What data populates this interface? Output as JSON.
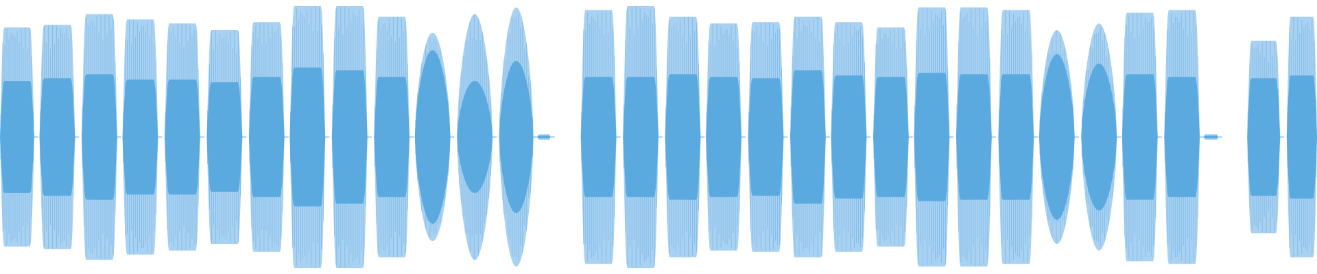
{
  "waveform": {
    "colors": {
      "background": "#ffffff",
      "peak": "#a9d1f1",
      "peak_line": "#5aa7e0",
      "rms": "#5aaae0",
      "center_tick": "#5aaae0"
    },
    "amplitude_range": [
      -1,
      1
    ],
    "bursts": [
      {
        "start": 0.0,
        "end": 0.026,
        "peak": 0.82,
        "rms": 0.42,
        "shape": "flat"
      },
      {
        "start": 0.03,
        "end": 0.057,
        "peak": 0.84,
        "rms": 0.44,
        "shape": "flat"
      },
      {
        "start": 0.062,
        "end": 0.089,
        "peak": 0.92,
        "rms": 0.47,
        "shape": "flat"
      },
      {
        "start": 0.093,
        "end": 0.12,
        "peak": 0.88,
        "rms": 0.43,
        "shape": "flat"
      },
      {
        "start": 0.125,
        "end": 0.152,
        "peak": 0.85,
        "rms": 0.43,
        "shape": "flat"
      },
      {
        "start": 0.157,
        "end": 0.184,
        "peak": 0.8,
        "rms": 0.41,
        "shape": "flat"
      },
      {
        "start": 0.189,
        "end": 0.216,
        "peak": 0.86,
        "rms": 0.45,
        "shape": "flat"
      },
      {
        "start": 0.22,
        "end": 0.247,
        "peak": 0.98,
        "rms": 0.52,
        "shape": "flat"
      },
      {
        "start": 0.252,
        "end": 0.279,
        "peak": 0.98,
        "rms": 0.5,
        "shape": "flat"
      },
      {
        "start": 0.284,
        "end": 0.311,
        "peak": 0.9,
        "rms": 0.45,
        "shape": "flat"
      },
      {
        "start": 0.315,
        "end": 0.342,
        "peak": 0.78,
        "rms": 0.65,
        "shape": "round"
      },
      {
        "start": 0.347,
        "end": 0.374,
        "peak": 0.92,
        "rms": 0.42,
        "shape": "round"
      },
      {
        "start": 0.379,
        "end": 0.405,
        "peak": 0.97,
        "rms": 0.57,
        "shape": "round"
      },
      {
        "start": 0.408,
        "end": 0.418,
        "peak": 0.02,
        "rms": 0.01,
        "shape": "flat"
      },
      {
        "start": 0.441,
        "end": 0.468,
        "peak": 0.95,
        "rms": 0.45,
        "shape": "flat"
      },
      {
        "start": 0.473,
        "end": 0.5,
        "peak": 0.98,
        "rms": 0.45,
        "shape": "flat"
      },
      {
        "start": 0.505,
        "end": 0.532,
        "peak": 0.9,
        "rms": 0.47,
        "shape": "flat"
      },
      {
        "start": 0.536,
        "end": 0.563,
        "peak": 0.85,
        "rms": 0.45,
        "shape": "flat"
      },
      {
        "start": 0.568,
        "end": 0.595,
        "peak": 0.86,
        "rms": 0.44,
        "shape": "flat"
      },
      {
        "start": 0.6,
        "end": 0.627,
        "peak": 0.9,
        "rms": 0.5,
        "shape": "flat"
      },
      {
        "start": 0.631,
        "end": 0.658,
        "peak": 0.86,
        "rms": 0.46,
        "shape": "flat"
      },
      {
        "start": 0.663,
        "end": 0.69,
        "peak": 0.82,
        "rms": 0.45,
        "shape": "flat"
      },
      {
        "start": 0.694,
        "end": 0.721,
        "peak": 0.97,
        "rms": 0.48,
        "shape": "flat"
      },
      {
        "start": 0.726,
        "end": 0.753,
        "peak": 0.97,
        "rms": 0.47,
        "shape": "flat"
      },
      {
        "start": 0.758,
        "end": 0.785,
        "peak": 0.95,
        "rms": 0.47,
        "shape": "flat"
      },
      {
        "start": 0.789,
        "end": 0.816,
        "peak": 0.8,
        "rms": 0.62,
        "shape": "round"
      },
      {
        "start": 0.821,
        "end": 0.848,
        "peak": 0.85,
        "rms": 0.55,
        "shape": "round"
      },
      {
        "start": 0.852,
        "end": 0.879,
        "peak": 0.93,
        "rms": 0.47,
        "shape": "flat"
      },
      {
        "start": 0.884,
        "end": 0.911,
        "peak": 0.95,
        "rms": 0.45,
        "shape": "flat"
      },
      {
        "start": 0.914,
        "end": 0.925,
        "peak": 0.02,
        "rms": 0.01,
        "shape": "flat"
      },
      {
        "start": 0.947,
        "end": 0.972,
        "peak": 0.72,
        "rms": 0.44,
        "shape": "flat"
      },
      {
        "start": 0.977,
        "end": 1.0,
        "peak": 0.9,
        "rms": 0.46,
        "shape": "flat"
      }
    ]
  }
}
